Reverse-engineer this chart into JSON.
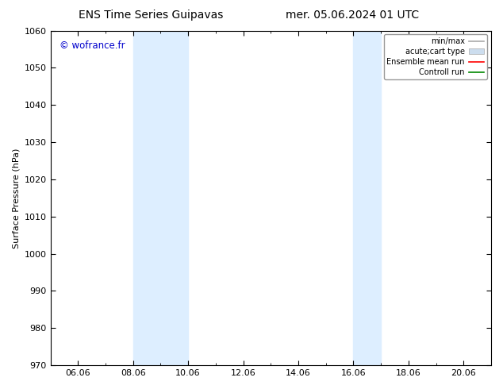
{
  "title_left": "ENS Time Series Guipavas",
  "title_right": "mer. 05.06.2024 01 UTC",
  "ylabel": "Surface Pressure (hPa)",
  "ylim": [
    970,
    1060
  ],
  "yticks": [
    970,
    980,
    990,
    1000,
    1010,
    1020,
    1030,
    1040,
    1050,
    1060
  ],
  "xtick_labels": [
    "06.06",
    "08.06",
    "10.06",
    "12.06",
    "14.06",
    "16.06",
    "18.06",
    "20.06"
  ],
  "xtick_positions": [
    6,
    8,
    10,
    12,
    14,
    16,
    18,
    20
  ],
  "xlim": [
    5,
    21
  ],
  "shaded_bands": [
    {
      "xmin": 8,
      "xmax": 10
    },
    {
      "xmin": 16,
      "xmax": 17
    }
  ],
  "shaded_color": "#ddeeff",
  "bg_color": "#ffffff",
  "watermark": "© wofrance.fr",
  "watermark_color": "#0000cc",
  "legend_entries": [
    {
      "label": "min/max",
      "color": "#aaaaaa",
      "type": "hline"
    },
    {
      "label": "acute;cart type",
      "color": "#ccddee",
      "type": "patch"
    },
    {
      "label": "Ensemble mean run",
      "color": "#ff0000",
      "type": "line"
    },
    {
      "label": "Controll run",
      "color": "#008800",
      "type": "line"
    }
  ],
  "title_fontsize": 10,
  "axis_fontsize": 8,
  "tick_fontsize": 8,
  "legend_fontsize": 7
}
